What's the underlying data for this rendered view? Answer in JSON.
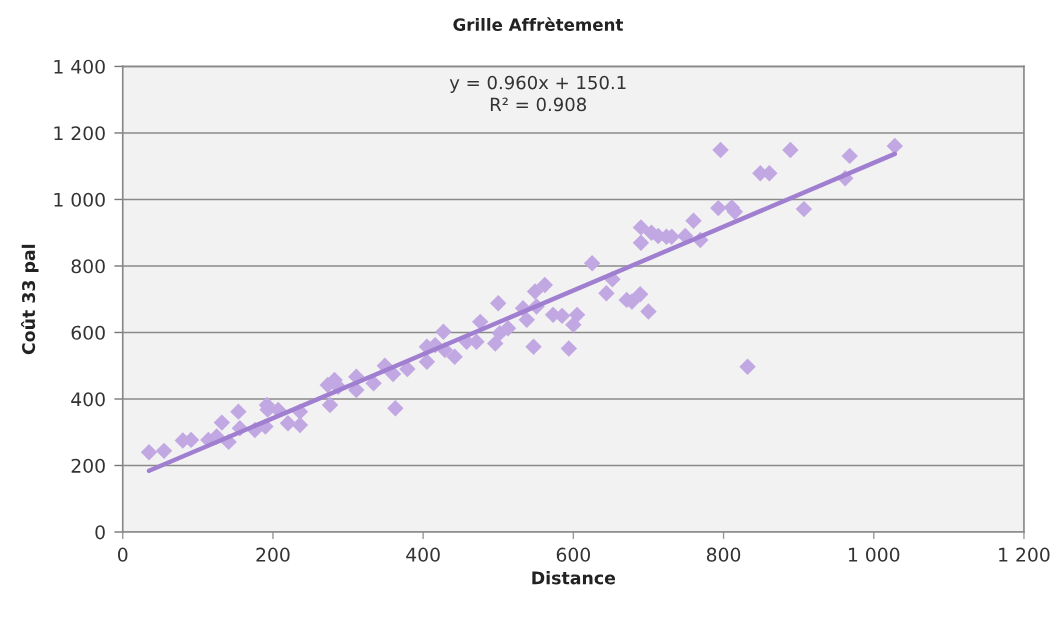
{
  "chart_data": {
    "type": "scatter",
    "title": "Grille Affrètement",
    "xlabel": "Distance",
    "ylabel": "Coût 33 pal",
    "annotations": [
      "y = 0.960x + 150.1",
      "R² = 0.908"
    ],
    "xlim": [
      0,
      1200
    ],
    "ylim": [
      0,
      1400
    ],
    "xticks": [
      0,
      200,
      400,
      600,
      800,
      {
        "value": 1000,
        "label": "1 000"
      },
      {
        "value": 1200,
        "label": "1 200"
      }
    ],
    "yticks": [
      0,
      200,
      400,
      600,
      800,
      {
        "value": 1000,
        "label": "1 000"
      },
      {
        "value": 1200,
        "label": "1 200"
      },
      {
        "value": 1400,
        "label": "1 400"
      }
    ],
    "grid": "y",
    "series": [
      {
        "color": "#c2a8e2",
        "marker": "diamond",
        "x": [
          35,
          55,
          80,
          91,
          114,
          125,
          132,
          141,
          154,
          156,
          176,
          190,
          192,
          193,
          207,
          220,
          236,
          236,
          273,
          276,
          282,
          287,
          311,
          311,
          334,
          349,
          360,
          363,
          379,
          405,
          405,
          416,
          427,
          429,
          442,
          458,
          471,
          476,
          496,
          500,
          502,
          513,
          533,
          538,
          547,
          549,
          551,
          562,
          573,
          585,
          594,
          600,
          605,
          625,
          644,
          652,
          671,
          678,
          689,
          700,
          690,
          690,
          704,
          713,
          724,
          731,
          749,
          760,
          769,
          793,
          796,
          811,
          815,
          832,
          849,
          861,
          889,
          907,
          962,
          968,
          1028
        ],
        "values": [
          240,
          244,
          275,
          277,
          277,
          287,
          329,
          271,
          362,
          312,
          307,
          317,
          382,
          368,
          367,
          327,
          322,
          362,
          442,
          382,
          457,
          437,
          467,
          427,
          447,
          500,
          475,
          372,
          490,
          557,
          512,
          562,
          602,
          547,
          527,
          572,
          572,
          632,
          567,
          688,
          598,
          613,
          673,
          638,
          557,
          723,
          678,
          743,
          653,
          650,
          552,
          623,
          653,
          808,
          718,
          760,
          698,
          693,
          715,
          663,
          916,
          870,
          900,
          890,
          888,
          888,
          890,
          936,
          878,
          974,
          1149,
          976,
          963,
          497,
          1079,
          1079,
          1149,
          971,
          1064,
          1131,
          1161
        ]
      },
      {
        "type": "line",
        "marker": "none",
        "color": "#a17fd0",
        "x": [
          35,
          1028
        ],
        "values": [
          184,
          1137
        ]
      }
    ]
  }
}
